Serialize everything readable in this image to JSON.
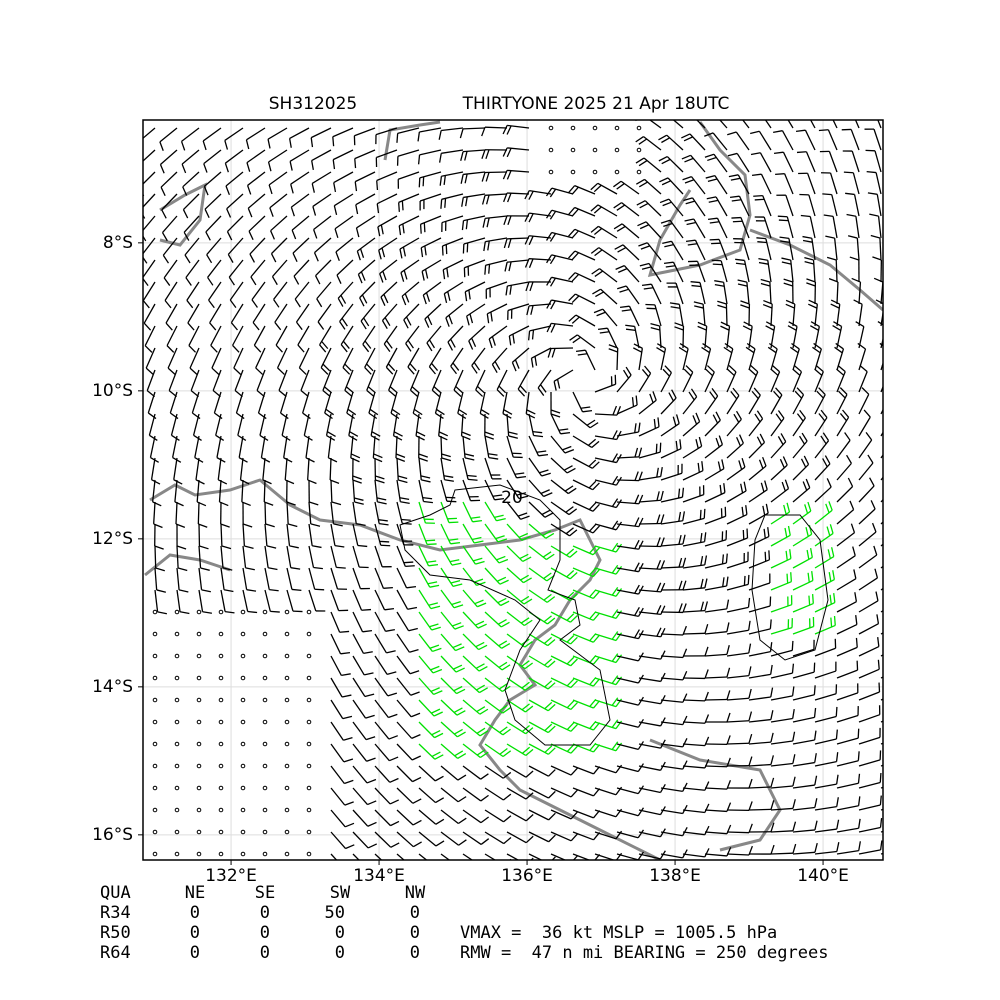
{
  "map": {
    "title_id": "SH312025",
    "title": "THIRTYONE 2025 21 Apr 18UTC",
    "xlim": [
      130.81,
      140.81
    ],
    "ylim": [
      -16.34,
      -6.34
    ],
    "xticks": [
      {
        "value": 132,
        "label": "132°E"
      },
      {
        "value": 134,
        "label": "134°E"
      },
      {
        "value": 136,
        "label": "136°E"
      },
      {
        "value": 138,
        "label": "138°E"
      },
      {
        "value": 140,
        "label": "140°E"
      }
    ],
    "yticks": [
      {
        "value": -8,
        "label": "8°S"
      },
      {
        "value": -10,
        "label": "10°S"
      },
      {
        "value": -12,
        "label": "12°S"
      },
      {
        "value": -14,
        "label": "14°S"
      },
      {
        "value": -16,
        "label": "16°S"
      }
    ],
    "contour_label": "20",
    "table": {
      "header": [
        "QUA",
        "NE",
        "SE",
        "SW",
        "NW"
      ],
      "rows": [
        [
          "R34",
          0,
          0,
          50,
          0
        ],
        [
          "R50",
          0,
          0,
          0,
          0
        ],
        [
          "R64",
          0,
          0,
          0,
          0
        ]
      ]
    },
    "stats": [
      "VMAX =  36 kt MSLP = 1005.5 hPa",
      "RMW =  47 n mi BEARING = 250 degrees"
    ]
  }
}
